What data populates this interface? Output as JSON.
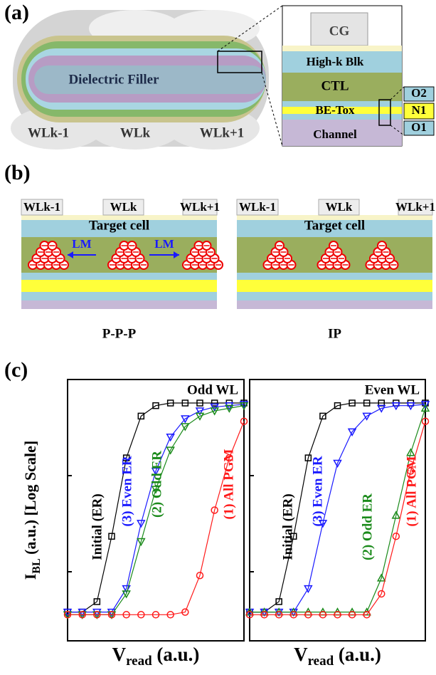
{
  "figure": {
    "panel_a": {
      "label": "(a)",
      "filler": "Dielectric Filler",
      "wordlines": [
        "WLk-1",
        "WLk",
        "WLk+1"
      ],
      "layers": [
        "CG",
        "High-k Blk",
        "CTL",
        "BE-Tox",
        "Channel"
      ],
      "tunnel_layers": [
        "O2",
        "N1",
        "O1"
      ]
    },
    "panel_b": {
      "label": "(b)",
      "diagrams": [
        {
          "wordlines": [
            "WLk-1",
            "WLk",
            "WLk+1"
          ],
          "cell": "Target cell",
          "arrows": [
            "LM",
            "LM"
          ],
          "caption": "P-P-P"
        },
        {
          "wordlines": [
            "WLk-1",
            "WLk",
            "WLk+1"
          ],
          "cell": "Target cell",
          "caption": "IP"
        }
      ]
    },
    "panel_c": {
      "label": "(c)"
    }
  },
  "chart_data": [
    {
      "type": "line",
      "title": "Odd WL",
      "log_scale": true,
      "xlabel": {
        "main": "V",
        "sub": "read",
        "rest": " (a.u.)"
      },
      "ylabel": {
        "main": "I",
        "sub": "BL",
        "rest": " (a.u.) [Log Scale]"
      },
      "x": [
        0,
        1,
        2,
        3,
        4,
        5,
        6,
        7,
        8,
        9,
        10,
        11,
        12
      ],
      "xlim": [
        0,
        12
      ],
      "ylim": [
        0,
        10
      ],
      "series": [
        {
          "name": "Initial (ER)",
          "color": "#000000",
          "marker": "square",
          "values": [
            1.1,
            1.1,
            1.5,
            4,
            7,
            8.6,
            9,
            9.1,
            9.1,
            9.1,
            9.1,
            9.1,
            9.1
          ]
        },
        {
          "name": "(3) Even ER",
          "color": "#1a1aff",
          "marker": "triangle-down",
          "values": [
            1.1,
            1.1,
            1.1,
            1.1,
            2,
            4.5,
            6.5,
            7.8,
            8.5,
            8.8,
            8.95,
            9,
            9.05
          ]
        },
        {
          "name": "(2) Odd ER",
          "color": "#1a8a1a",
          "marker": "triangle-down",
          "values": [
            1,
            1,
            1,
            1,
            1.8,
            3.8,
            5.8,
            7.3,
            8.2,
            8.6,
            8.8,
            8.9,
            9
          ]
        },
        {
          "name": "(1) All PGM",
          "color": "#ff1a1a",
          "marker": "circle",
          "values": [
            1,
            1,
            1,
            1,
            1,
            1,
            1,
            1,
            1.1,
            2.5,
            5,
            7,
            8.4
          ]
        }
      ]
    },
    {
      "type": "line",
      "title": "Even WL",
      "log_scale": true,
      "xlabel": {
        "main": "V",
        "sub": "read",
        "rest": " (a.u.)"
      },
      "x": [
        0,
        1,
        2,
        3,
        4,
        5,
        6,
        7,
        8,
        9,
        10,
        11,
        12
      ],
      "xlim": [
        0,
        12
      ],
      "ylim": [
        0,
        10
      ],
      "series": [
        {
          "name": "Initial (ER)",
          "color": "#000000",
          "marker": "square",
          "values": [
            1.1,
            1.1,
            1.5,
            4,
            7,
            8.6,
            9,
            9.1,
            9.1,
            9.1,
            9.1,
            9.1,
            9.1
          ]
        },
        {
          "name": "(3) Even ER",
          "color": "#1a1aff",
          "marker": "triangle-down",
          "values": [
            1.1,
            1.1,
            1.1,
            1.1,
            2,
            4.5,
            6.8,
            8,
            8.6,
            8.9,
            9,
            9,
            9.05
          ]
        },
        {
          "name": "(2) Odd ER",
          "color": "#1a8a1a",
          "marker": "triangle-up",
          "values": [
            1.1,
            1.1,
            1.1,
            1.1,
            1.1,
            1.1,
            1.1,
            1.1,
            1.1,
            2.4,
            4.8,
            7.2,
            8.9
          ]
        },
        {
          "name": "(1) All PGM",
          "color": "#ff1a1a",
          "marker": "circle",
          "values": [
            1,
            1,
            1,
            1,
            1,
            1,
            1,
            1,
            1,
            1.8,
            4,
            6.5,
            8.4
          ]
        }
      ]
    }
  ]
}
